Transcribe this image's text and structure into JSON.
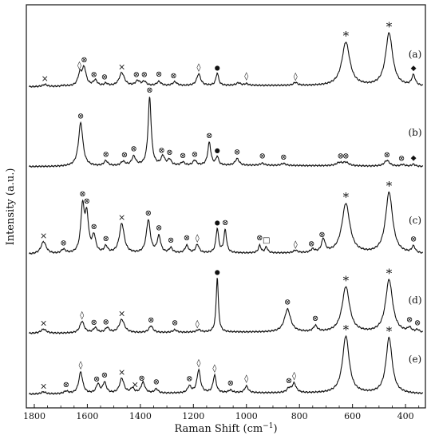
{
  "chart_data": {
    "type": "line",
    "xlabel": "Raman Shift (cm",
    "xlabel_sup": "−1",
    "xlabel_close": ")",
    "ylabel": "Intensity (a.u.)",
    "xlim": [
      1830,
      325
    ],
    "xticks": [
      1800,
      1600,
      1400,
      1200,
      1000,
      800,
      600,
      400
    ],
    "xtick_labels": [
      "1800",
      "1600",
      "1400",
      "1200",
      "1000",
      "800",
      "600",
      "400"
    ],
    "marker_symbols": {
      "cross": "×",
      "otimes": "⊗",
      "diamond": "◊",
      "dot": "●",
      "star": "*",
      "fdiamond": "◆",
      "square": "□"
    },
    "series": [
      {
        "label": "(a)",
        "baseline": 0.1,
        "peaks": [
          [
            1760,
            0.05,
            10
          ],
          [
            1690,
            0.02,
            10
          ],
          [
            1628,
            0.28,
            9
          ],
          [
            1612,
            0.42,
            9
          ],
          [
            1570,
            0.14,
            9
          ],
          [
            1530,
            0.06,
            8
          ],
          [
            1470,
            0.32,
            12
          ],
          [
            1410,
            0.12,
            10
          ],
          [
            1385,
            0.1,
            9
          ],
          [
            1330,
            0.1,
            10
          ],
          [
            1270,
            0.09,
            10
          ],
          [
            1180,
            0.28,
            9
          ],
          [
            1110,
            0.3,
            6
          ],
          [
            1030,
            0.06,
            10
          ],
          [
            1000,
            0.04,
            8
          ],
          [
            815,
            0.07,
            9
          ],
          [
            625,
            1.05,
            18
          ],
          [
            462,
            1.28,
            16
          ],
          [
            370,
            0.25,
            8
          ]
        ],
        "markers": [
          [
            1760,
            "cross"
          ],
          [
            1630,
            "diamond"
          ],
          [
            1612,
            "otimes"
          ],
          [
            1575,
            "otimes"
          ],
          [
            1535,
            "otimes"
          ],
          [
            1470,
            "cross"
          ],
          [
            1415,
            "otimes"
          ],
          [
            1385,
            "otimes"
          ],
          [
            1330,
            "otimes"
          ],
          [
            1275,
            "otimes"
          ],
          [
            1180,
            "diamond"
          ],
          [
            1110,
            "dot"
          ],
          [
            1000,
            "diamond"
          ],
          [
            815,
            "diamond"
          ],
          [
            625,
            "star"
          ],
          [
            462,
            "star"
          ],
          [
            370,
            "fdiamond"
          ]
        ]
      },
      {
        "label": "(b)",
        "baseline": 0.06,
        "peaks": [
          [
            1625,
            1.05,
            10
          ],
          [
            1530,
            0.12,
            9
          ],
          [
            1465,
            0.1,
            10
          ],
          [
            1425,
            0.22,
            9
          ],
          [
            1365,
            1.65,
            7
          ],
          [
            1315,
            0.22,
            8
          ],
          [
            1290,
            0.14,
            8
          ],
          [
            1240,
            0.08,
            8
          ],
          [
            1195,
            0.12,
            8
          ],
          [
            1140,
            0.55,
            7
          ],
          [
            1110,
            0.2,
            6
          ],
          [
            1035,
            0.16,
            9
          ],
          [
            940,
            0.05,
            10
          ],
          [
            860,
            0.05,
            10
          ],
          [
            650,
            0.07,
            14
          ],
          [
            625,
            0.08,
            14
          ],
          [
            470,
            0.14,
            12
          ],
          [
            410,
            0.04,
            10
          ],
          [
            370,
            0.05,
            8
          ]
        ],
        "markers": [
          [
            1625,
            "otimes"
          ],
          [
            1530,
            "otimes"
          ],
          [
            1460,
            "otimes"
          ],
          [
            1425,
            "otimes"
          ],
          [
            1365,
            "otimes"
          ],
          [
            1320,
            "otimes"
          ],
          [
            1290,
            "otimes"
          ],
          [
            1240,
            "otimes"
          ],
          [
            1195,
            "otimes"
          ],
          [
            1140,
            "otimes"
          ],
          [
            1110,
            "dot"
          ],
          [
            1035,
            "otimes"
          ],
          [
            940,
            "otimes"
          ],
          [
            860,
            "otimes"
          ],
          [
            645,
            "otimes"
          ],
          [
            625,
            "otimes"
          ],
          [
            470,
            "otimes"
          ],
          [
            415,
            "otimes"
          ],
          [
            370,
            "fdiamond"
          ]
        ]
      },
      {
        "label": "(c)",
        "baseline": 0.06,
        "peaks": [
          [
            1765,
            0.3,
            12
          ],
          [
            1690,
            0.1,
            10
          ],
          [
            1618,
            1.1,
            8
          ],
          [
            1602,
            0.85,
            8
          ],
          [
            1575,
            0.4,
            8
          ],
          [
            1530,
            0.16,
            8
          ],
          [
            1470,
            0.72,
            11
          ],
          [
            1370,
            0.8,
            9
          ],
          [
            1330,
            0.4,
            8
          ],
          [
            1285,
            0.12,
            8
          ],
          [
            1225,
            0.18,
            8
          ],
          [
            1185,
            0.2,
            8
          ],
          [
            1110,
            0.58,
            6
          ],
          [
            1080,
            0.55,
            6
          ],
          [
            950,
            0.18,
            6
          ],
          [
            925,
            0.14,
            6
          ],
          [
            815,
            0.06,
            9
          ],
          [
            750,
            0.08,
            9
          ],
          [
            710,
            0.32,
            8
          ],
          [
            625,
            1.2,
            18
          ],
          [
            462,
            1.48,
            16
          ],
          [
            370,
            0.16,
            8
          ]
        ],
        "markers": [
          [
            1765,
            "cross"
          ],
          [
            1690,
            "otimes"
          ],
          [
            1618,
            "otimes"
          ],
          [
            1602,
            "otimes"
          ],
          [
            1575,
            "otimes"
          ],
          [
            1530,
            "otimes"
          ],
          [
            1470,
            "cross"
          ],
          [
            1370,
            "otimes"
          ],
          [
            1330,
            "otimes"
          ],
          [
            1285,
            "otimes"
          ],
          [
            1225,
            "otimes"
          ],
          [
            1185,
            "diamond"
          ],
          [
            1110,
            "dot"
          ],
          [
            1080,
            "otimes"
          ],
          [
            950,
            "otimes"
          ],
          [
            925,
            "square"
          ],
          [
            815,
            "diamond"
          ],
          [
            755,
            "otimes"
          ],
          [
            715,
            "otimes"
          ],
          [
            625,
            "star"
          ],
          [
            462,
            "star"
          ],
          [
            370,
            "otimes"
          ]
        ]
      },
      {
        "label": "(d)",
        "baseline": 0.08,
        "peaks": [
          [
            1765,
            0.1,
            12
          ],
          [
            1620,
            0.28,
            10
          ],
          [
            1570,
            0.12,
            9
          ],
          [
            1525,
            0.12,
            9
          ],
          [
            1470,
            0.32,
            12
          ],
          [
            1360,
            0.16,
            9
          ],
          [
            1270,
            0.06,
            9
          ],
          [
            1180,
            0.06,
            9
          ],
          [
            1110,
            1.32,
            5
          ],
          [
            845,
            0.55,
            14
          ],
          [
            740,
            0.14,
            9
          ],
          [
            625,
            1.1,
            17
          ],
          [
            462,
            1.28,
            16
          ],
          [
            385,
            0.1,
            9
          ],
          [
            355,
            0.06,
            8
          ]
        ],
        "markers": [
          [
            1765,
            "cross"
          ],
          [
            1620,
            "diamond"
          ],
          [
            1575,
            "otimes"
          ],
          [
            1530,
            "otimes"
          ],
          [
            1470,
            "cross"
          ],
          [
            1360,
            "otimes"
          ],
          [
            1270,
            "otimes"
          ],
          [
            1185,
            "diamond"
          ],
          [
            1110,
            "dot"
          ],
          [
            845,
            "otimes"
          ],
          [
            740,
            "otimes"
          ],
          [
            625,
            "star"
          ],
          [
            462,
            "star"
          ],
          [
            385,
            "otimes"
          ],
          [
            355,
            "otimes"
          ]
        ]
      },
      {
        "label": "(e)",
        "baseline": 0.04,
        "peaks": [
          [
            1765,
            0.05,
            10
          ],
          [
            1680,
            0.06,
            10
          ],
          [
            1625,
            0.52,
            9
          ],
          [
            1560,
            0.22,
            8
          ],
          [
            1535,
            0.26,
            8
          ],
          [
            1470,
            0.36,
            10
          ],
          [
            1430,
            0.12,
            8
          ],
          [
            1390,
            0.26,
            9
          ],
          [
            1340,
            0.1,
            8
          ],
          [
            1215,
            0.16,
            8
          ],
          [
            1180,
            0.55,
            8
          ],
          [
            1120,
            0.42,
            7
          ],
          [
            1060,
            0.06,
            9
          ],
          [
            1000,
            0.16,
            8
          ],
          [
            840,
            0.1,
            9
          ],
          [
            820,
            0.22,
            9
          ],
          [
            625,
            1.38,
            15
          ],
          [
            462,
            1.35,
            14
          ]
        ],
        "markers": [
          [
            1765,
            "cross"
          ],
          [
            1680,
            "otimes"
          ],
          [
            1625,
            "diamond"
          ],
          [
            1565,
            "otimes"
          ],
          [
            1535,
            "otimes"
          ],
          [
            1470,
            "cross"
          ],
          [
            1420,
            "cross"
          ],
          [
            1395,
            "otimes"
          ],
          [
            1340,
            "otimes"
          ],
          [
            1215,
            "otimes"
          ],
          [
            1180,
            "diamond"
          ],
          [
            1120,
            "diamond"
          ],
          [
            1060,
            "otimes"
          ],
          [
            1000,
            "diamond"
          ],
          [
            840,
            "otimes"
          ],
          [
            820,
            "diamond"
          ],
          [
            625,
            "star"
          ],
          [
            462,
            "star"
          ]
        ]
      }
    ]
  }
}
